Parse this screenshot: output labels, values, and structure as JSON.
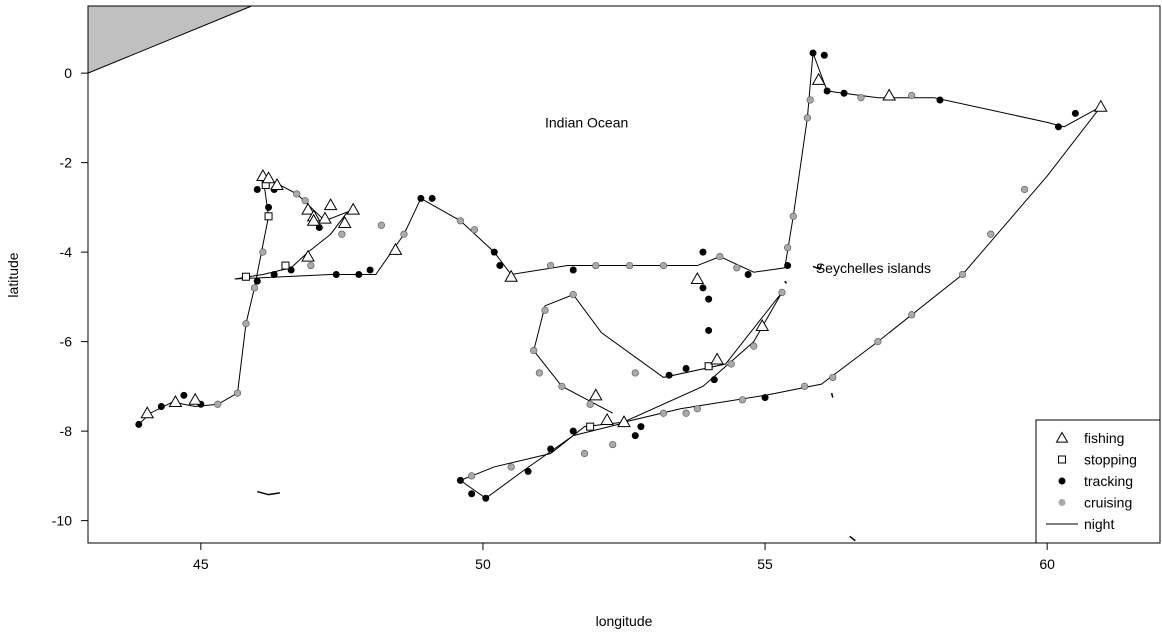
{
  "chart_data": {
    "type": "scatter",
    "title": "",
    "xlabel": "longitude",
    "ylabel": "latitude",
    "xlim": [
      43.0,
      62.0
    ],
    "ylim": [
      -10.5,
      1.5
    ],
    "x_ticks": [
      45,
      50,
      55,
      60
    ],
    "x_tick_labels": [
      "45",
      "50",
      "55",
      "60"
    ],
    "y_ticks": [
      0,
      -2,
      -4,
      -6,
      -8,
      -10
    ],
    "y_tick_labels": [
      "0",
      "-2",
      "-4",
      "-6",
      "-8",
      "-10"
    ],
    "grid": false,
    "legend_position": "bottom-right",
    "legend": [
      {
        "label": "fishing",
        "marker": "triangle"
      },
      {
        "label": "stopping",
        "marker": "square"
      },
      {
        "label": "tracking",
        "marker": "filled-circle"
      },
      {
        "label": "cruising",
        "marker": "grey-circle"
      },
      {
        "label": "night",
        "marker": "line"
      }
    ],
    "annotations": [
      {
        "text": "Indian Ocean",
        "x": 51.1,
        "y": -1.1
      },
      {
        "text": "Seychelles islands",
        "x": 55.9,
        "y": -4.35
      }
    ],
    "colors": {
      "tracking": "#000000",
      "cruising": "#aaaaaa",
      "land": "#c0c0c0",
      "line": "#000000"
    },
    "land": {
      "mainland": [
        [
          43.0,
          0.0
        ],
        [
          43.0,
          1.5
        ],
        [
          45.9,
          1.5
        ]
      ],
      "islands": [
        [
          [
            46.0,
            -9.35
          ],
          [
            46.2,
            -9.42
          ],
          [
            46.4,
            -9.38
          ]
        ],
        [
          [
            55.85,
            -4.32
          ],
          [
            55.97,
            -4.38
          ],
          [
            56.0,
            -4.28
          ]
        ],
        [
          [
            56.18,
            -7.15
          ],
          [
            56.2,
            -7.25
          ]
        ],
        [
          [
            56.5,
            -10.35
          ],
          [
            56.6,
            -10.45
          ]
        ],
        [
          [
            55.35,
            -4.65
          ],
          [
            55.38,
            -4.7
          ]
        ]
      ]
    },
    "track": [
      [
        43.9,
        -7.85
      ],
      [
        44.1,
        -7.6
      ],
      [
        44.5,
        -7.35
      ],
      [
        44.9,
        -7.45
      ],
      [
        45.3,
        -7.4
      ],
      [
        45.65,
        -7.15
      ],
      [
        45.8,
        -5.6
      ],
      [
        45.95,
        -4.8
      ],
      [
        46.2,
        -3.2
      ],
      [
        46.1,
        -2.3
      ],
      [
        46.7,
        -2.7
      ],
      [
        47.2,
        -3.3
      ],
      [
        47.6,
        -3.1
      ],
      [
        47.3,
        -3.6
      ],
      [
        46.9,
        -4.0
      ],
      [
        46.6,
        -4.35
      ],
      [
        46.1,
        -4.5
      ],
      [
        45.6,
        -4.6
      ],
      [
        47.3,
        -4.5
      ],
      [
        48.1,
        -4.5
      ],
      [
        48.6,
        -3.6
      ],
      [
        48.9,
        -2.8
      ],
      [
        49.6,
        -3.3
      ],
      [
        50.2,
        -4.0
      ],
      [
        50.5,
        -4.5
      ],
      [
        51.5,
        -4.3
      ],
      [
        53.0,
        -4.3
      ],
      [
        53.8,
        -4.3
      ],
      [
        54.2,
        -4.1
      ],
      [
        54.8,
        -4.45
      ],
      [
        55.35,
        -4.35
      ],
      [
        55.5,
        -3.2
      ],
      [
        55.75,
        -1.0
      ],
      [
        55.85,
        0.45
      ],
      [
        56.1,
        -0.4
      ],
      [
        57.0,
        -0.55
      ],
      [
        58.0,
        -0.55
      ],
      [
        60.0,
        -1.1
      ],
      [
        60.3,
        -1.2
      ],
      [
        60.95,
        -0.75
      ],
      [
        60.0,
        -2.3
      ],
      [
        58.5,
        -4.5
      ],
      [
        57.0,
        -6.0
      ],
      [
        56.0,
        -6.95
      ],
      [
        55.0,
        -7.2
      ],
      [
        53.5,
        -7.5
      ],
      [
        52.5,
        -7.8
      ],
      [
        51.8,
        -7.9
      ],
      [
        51.2,
        -8.5
      ],
      [
        50.2,
        -8.8
      ],
      [
        49.6,
        -9.1
      ],
      [
        50.05,
        -9.5
      ],
      [
        50.7,
        -8.9
      ],
      [
        51.6,
        -8.1
      ],
      [
        52.4,
        -7.85
      ],
      [
        53.9,
        -7.0
      ],
      [
        54.8,
        -6.0
      ],
      [
        55.3,
        -4.9
      ],
      [
        54.3,
        -6.5
      ],
      [
        53.2,
        -6.8
      ],
      [
        52.1,
        -5.8
      ],
      [
        51.6,
        -4.95
      ],
      [
        51.1,
        -5.2
      ],
      [
        50.9,
        -6.2
      ],
      [
        51.4,
        -7.0
      ],
      [
        52.3,
        -7.6
      ]
    ],
    "fishing": [
      [
        44.05,
        -7.6
      ],
      [
        44.55,
        -7.35
      ],
      [
        44.9,
        -7.3
      ],
      [
        46.1,
        -2.3
      ],
      [
        46.2,
        -2.35
      ],
      [
        46.9,
        -3.05
      ],
      [
        47.0,
        -3.2
      ],
      [
        47.3,
        -2.95
      ],
      [
        47.7,
        -3.05
      ],
      [
        47.2,
        -3.25
      ],
      [
        47.0,
        -3.3
      ],
      [
        46.9,
        -4.1
      ],
      [
        48.45,
        -3.95
      ],
      [
        50.5,
        -4.55
      ],
      [
        53.8,
        -4.6
      ],
      [
        54.15,
        -6.4
      ],
      [
        54.95,
        -5.65
      ],
      [
        52.0,
        -7.2
      ],
      [
        52.2,
        -7.75
      ],
      [
        52.5,
        -7.8
      ],
      [
        55.95,
        -0.15
      ],
      [
        57.2,
        -0.5
      ],
      [
        60.95,
        -0.75
      ],
      [
        46.35,
        -2.5
      ],
      [
        47.55,
        -3.35
      ]
    ],
    "stopping": [
      [
        45.8,
        -4.55
      ],
      [
        46.2,
        -3.2
      ],
      [
        46.5,
        -4.3
      ],
      [
        51.9,
        -7.9
      ],
      [
        54.0,
        -6.55
      ],
      [
        46.15,
        -2.5
      ]
    ],
    "tracking_points": [
      [
        43.9,
        -7.85
      ],
      [
        44.3,
        -7.45
      ],
      [
        44.7,
        -7.2
      ],
      [
        45.0,
        -7.4
      ],
      [
        46.0,
        -2.6
      ],
      [
        46.3,
        -2.6
      ],
      [
        46.2,
        -3.0
      ],
      [
        47.1,
        -3.45
      ],
      [
        46.3,
        -4.5
      ],
      [
        46.6,
        -4.4
      ],
      [
        46.0,
        -4.65
      ],
      [
        47.4,
        -4.5
      ],
      [
        47.8,
        -4.5
      ],
      [
        48.0,
        -4.4
      ],
      [
        48.9,
        -2.8
      ],
      [
        49.1,
        -2.8
      ],
      [
        50.2,
        -4.0
      ],
      [
        50.3,
        -4.3
      ],
      [
        51.6,
        -4.4
      ],
      [
        53.9,
        -4.0
      ],
      [
        53.9,
        -4.8
      ],
      [
        54.0,
        -5.05
      ],
      [
        54.7,
        -4.5
      ],
      [
        55.4,
        -4.3
      ],
      [
        55.85,
        0.45
      ],
      [
        56.05,
        0.4
      ],
      [
        56.1,
        -0.4
      ],
      [
        56.4,
        -0.45
      ],
      [
        58.1,
        -0.6
      ],
      [
        60.2,
        -1.2
      ],
      [
        60.5,
        -0.9
      ],
      [
        52.7,
        -8.1
      ],
      [
        52.8,
        -7.9
      ],
      [
        53.6,
        -6.6
      ],
      [
        53.3,
        -6.75
      ],
      [
        54.0,
        -5.75
      ],
      [
        54.1,
        -6.85
      ],
      [
        50.05,
        -9.5
      ],
      [
        49.6,
        -9.1
      ],
      [
        49.8,
        -9.4
      ],
      [
        50.8,
        -8.9
      ],
      [
        51.2,
        -8.4
      ],
      [
        51.6,
        -8.0
      ],
      [
        55.0,
        -7.25
      ]
    ],
    "cruising_points": [
      [
        45.3,
        -7.4
      ],
      [
        45.65,
        -7.15
      ],
      [
        45.8,
        -5.6
      ],
      [
        45.95,
        -4.8
      ],
      [
        46.1,
        -4.0
      ],
      [
        46.7,
        -2.7
      ],
      [
        46.85,
        -2.85
      ],
      [
        46.95,
        -4.3
      ],
      [
        47.5,
        -3.6
      ],
      [
        48.2,
        -3.4
      ],
      [
        48.6,
        -3.6
      ],
      [
        49.6,
        -3.3
      ],
      [
        49.85,
        -3.5
      ],
      [
        51.2,
        -4.3
      ],
      [
        52.0,
        -4.3
      ],
      [
        52.6,
        -4.3
      ],
      [
        53.2,
        -4.3
      ],
      [
        54.2,
        -4.1
      ],
      [
        54.5,
        -4.35
      ],
      [
        55.4,
        -3.9
      ],
      [
        55.5,
        -3.2
      ],
      [
        55.75,
        -1.0
      ],
      [
        55.8,
        -0.6
      ],
      [
        56.7,
        -0.55
      ],
      [
        57.6,
        -0.5
      ],
      [
        59.6,
        -2.6
      ],
      [
        59.0,
        -3.6
      ],
      [
        58.5,
        -4.5
      ],
      [
        57.6,
        -5.4
      ],
      [
        57.0,
        -6.0
      ],
      [
        56.2,
        -6.8
      ],
      [
        55.7,
        -7.0
      ],
      [
        54.6,
        -7.3
      ],
      [
        53.8,
        -7.5
      ],
      [
        53.2,
        -7.6
      ],
      [
        53.6,
        -7.6
      ],
      [
        52.3,
        -8.3
      ],
      [
        51.8,
        -8.5
      ],
      [
        50.5,
        -8.8
      ],
      [
        49.8,
        -9.0
      ],
      [
        51.6,
        -4.95
      ],
      [
        51.1,
        -5.3
      ],
      [
        50.9,
        -6.2
      ],
      [
        51.0,
        -6.7
      ],
      [
        51.4,
        -7.0
      ],
      [
        51.9,
        -7.4
      ],
      [
        52.7,
        -6.7
      ],
      [
        54.4,
        -6.5
      ],
      [
        54.8,
        -6.1
      ],
      [
        55.3,
        -4.9
      ]
    ]
  }
}
